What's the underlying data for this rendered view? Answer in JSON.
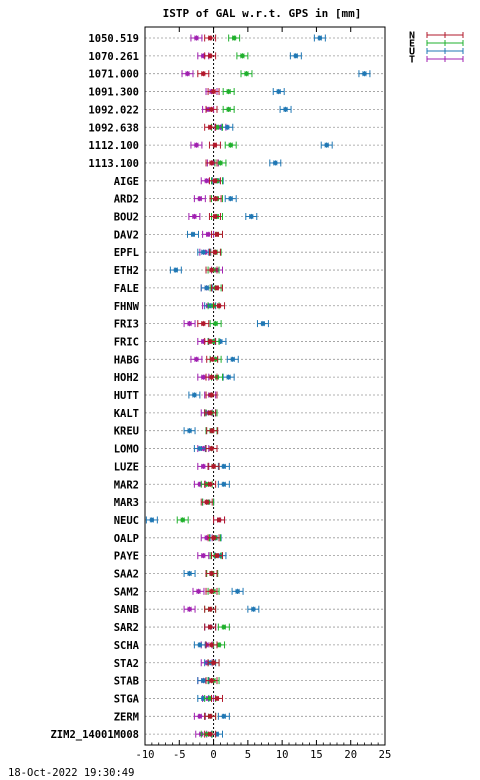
{
  "title": "ISTP of GAL w.r.t. GPS in [mm]",
  "timestamp": "18-Oct-2022 19:30:49",
  "legend": [
    {
      "label": "N",
      "color": "#b2182b"
    },
    {
      "label": "E",
      "color": "#1fb02c"
    },
    {
      "label": "U",
      "color": "#1f77b4"
    },
    {
      "label": "T",
      "color": "#a020b0"
    }
  ],
  "chart_data": {
    "type": "scatter",
    "title": "ISTP of GAL w.r.t. GPS in [mm]",
    "xlabel": "",
    "ylabel": "",
    "xlim": [
      -10,
      25
    ],
    "xticks": [
      -10,
      -5,
      0,
      5,
      10,
      15,
      20,
      25
    ],
    "grid": true,
    "reference_line_x": 0,
    "legend_position": "top-right",
    "error_bar_halfwidth": 0.8,
    "series_order": [
      "N",
      "E",
      "U",
      "T"
    ],
    "stations": [
      {
        "name": "1050.519",
        "N": -0.5,
        "E": 3.0,
        "U": 15.5,
        "T": -2.5
      },
      {
        "name": "1070.261",
        "N": -0.5,
        "E": 4.2,
        "U": 12.0,
        "T": -1.5
      },
      {
        "name": "1071.000",
        "N": -1.5,
        "E": 4.8,
        "U": 22.0,
        "T": -3.8
      },
      {
        "name": "1091.300",
        "N": 0.0,
        "E": 2.2,
        "U": 9.5,
        "T": -0.3
      },
      {
        "name": "1092.022",
        "N": -0.3,
        "E": 2.2,
        "U": 10.5,
        "T": -0.8
      },
      {
        "name": "1092.638",
        "N": -0.5,
        "E": 0.5,
        "U": 2.0,
        "T": 1.0
      },
      {
        "name": "1112.100",
        "N": 0.2,
        "E": 2.5,
        "U": 16.5,
        "T": -2.5
      },
      {
        "name": "1113.100",
        "N": -0.3,
        "E": 1.0,
        "U": 9.0,
        "T": -0.1
      },
      {
        "name": "AIGE",
        "N": 0.2,
        "E": 0.5,
        "U": 0.6,
        "T": -1.0
      },
      {
        "name": "ARD2",
        "N": 0.3,
        "E": 0.5,
        "U": 2.5,
        "T": -2.0
      },
      {
        "name": "BOU2",
        "N": 0.2,
        "E": 0.5,
        "U": 5.5,
        "T": -2.8
      },
      {
        "name": "DAV2",
        "N": 0.5,
        "E": 0.5,
        "U": -3.0,
        "T": -0.8
      },
      {
        "name": "EPFL",
        "N": 0.2,
        "E": 0.3,
        "U": -1.5,
        "T": -1.2
      },
      {
        "name": "ETH2",
        "N": -0.3,
        "E": 0.0,
        "U": -5.5,
        "T": 0.5
      },
      {
        "name": "FALE",
        "N": 0.5,
        "E": 0.3,
        "U": -1.0,
        "T": -1.0
      },
      {
        "name": "FHNW",
        "N": 0.8,
        "E": 0.0,
        "U": -0.5,
        "T": -0.8
      },
      {
        "name": "FRI3",
        "N": -1.5,
        "E": 0.3,
        "U": 7.2,
        "T": -3.5
      },
      {
        "name": "FRIC",
        "N": -0.5,
        "E": 0.0,
        "U": 1.0,
        "T": -1.5
      },
      {
        "name": "HABG",
        "N": -0.2,
        "E": 0.3,
        "U": 2.8,
        "T": -2.5
      },
      {
        "name": "HOH2",
        "N": -0.3,
        "E": 0.5,
        "U": 2.2,
        "T": -1.5
      },
      {
        "name": "HUTT",
        "N": -0.3,
        "E": -0.3,
        "U": -2.8,
        "T": -0.5
      },
      {
        "name": "KALT",
        "N": -0.5,
        "E": -0.3,
        "U": -0.5,
        "T": -1.0
      },
      {
        "name": "KREU",
        "N": -0.2,
        "E": -0.3,
        "U": -3.5,
        "T": -0.3
      },
      {
        "name": "LOMO",
        "N": -0.3,
        "E": -0.3,
        "U": -2.0,
        "T": -1.5
      },
      {
        "name": "LUZE",
        "N": 0.0,
        "E": 0.0,
        "U": 1.5,
        "T": -1.5
      },
      {
        "name": "MAR2",
        "N": -0.5,
        "E": -1.0,
        "U": 1.5,
        "T": -2.0
      },
      {
        "name": "MAR3",
        "N": -1.0,
        "E": -0.8,
        "U": -0.8,
        "T": -0.8
      },
      {
        "name": "NEUC",
        "N": 0.8,
        "E": -4.5,
        "U": -9.0,
        "T": 0.8
      },
      {
        "name": "OALP",
        "N": 0.0,
        "E": 0.2,
        "U": 0.3,
        "T": -1.0
      },
      {
        "name": "PAYE",
        "N": 0.5,
        "E": 0.3,
        "U": 1.0,
        "T": -1.5
      },
      {
        "name": "SAA2",
        "N": -0.3,
        "E": -0.2,
        "U": -3.5,
        "T": -0.3
      },
      {
        "name": "SAM2",
        "N": -0.3,
        "E": 0.0,
        "U": 3.5,
        "T": -2.2
      },
      {
        "name": "SANB",
        "N": -0.5,
        "E": -0.5,
        "U": 5.8,
        "T": -3.5
      },
      {
        "name": "SAR2",
        "N": -0.5,
        "E": 1.5,
        "U": -0.5,
        "T": -0.5
      },
      {
        "name": "SCHA",
        "N": -0.3,
        "E": 0.8,
        "U": -2.0,
        "T": -1.0
      },
      {
        "name": "STA2",
        "N": 0.0,
        "E": 0.0,
        "U": -0.5,
        "T": -1.0
      },
      {
        "name": "STAB",
        "N": -0.3,
        "E": 0.0,
        "U": -1.5,
        "T": -1.5
      },
      {
        "name": "STGA",
        "N": 0.5,
        "E": -0.5,
        "U": -1.5,
        "T": -0.8
      },
      {
        "name": "ZERM",
        "N": -0.5,
        "E": -0.5,
        "U": 1.5,
        "T": -2.0
      },
      {
        "name": "ZIM2_14001M008",
        "N": -0.5,
        "E": -1.0,
        "U": 0.5,
        "T": -1.8
      }
    ]
  }
}
